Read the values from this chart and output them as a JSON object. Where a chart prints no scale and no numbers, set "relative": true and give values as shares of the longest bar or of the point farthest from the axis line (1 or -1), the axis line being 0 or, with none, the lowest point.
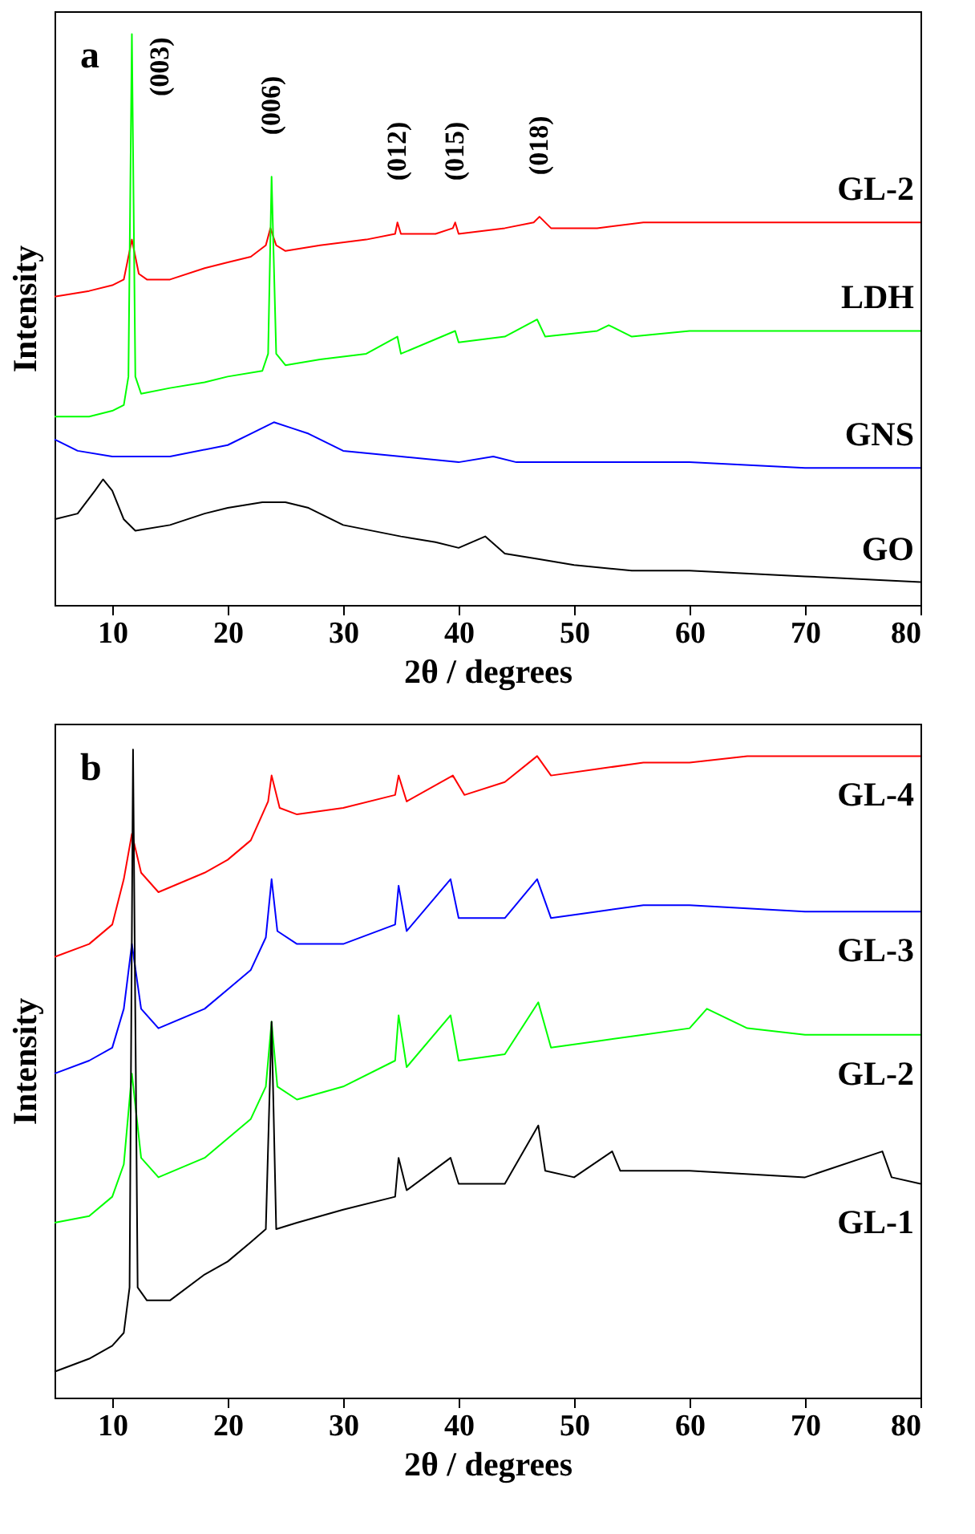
{
  "chart_data": [
    {
      "type": "line",
      "relative": true,
      "xlabel": "2θ / degrees",
      "ylabel": "Intensity",
      "xlim": [
        5,
        80
      ],
      "xticks": [
        10,
        20,
        30,
        40,
        50,
        60,
        70,
        80
      ],
      "annotations": [
        "a",
        {
          "text": "(003)",
          "x": 11.7,
          "y": 1.0
        },
        {
          "text": "(006)",
          "x": 23.8,
          "y": 0.75
        },
        {
          "text": "(012)",
          "x": 34.7,
          "y": 0.67
        },
        {
          "text": "(015)",
          "x": 39.7,
          "y": 0.67
        },
        {
          "text": "(018)",
          "x": 47,
          "y": 0.68
        }
      ],
      "series": [
        {
          "name": "GL-2",
          "color": "#ff0000",
          "x": [
            5,
            8,
            10,
            11,
            11.7,
            12.3,
            13,
            15,
            18,
            20,
            22,
            23.3,
            23.7,
            24.2,
            25,
            28,
            32,
            34.5,
            34.7,
            35,
            38,
            39.5,
            39.7,
            40,
            44,
            46.5,
            47,
            48,
            52,
            56,
            60,
            62,
            66,
            70,
            75,
            80
          ],
          "values": [
            0.54,
            0.55,
            0.56,
            0.57,
            0.64,
            0.58,
            0.57,
            0.57,
            0.59,
            0.6,
            0.61,
            0.63,
            0.66,
            0.63,
            0.62,
            0.63,
            0.64,
            0.65,
            0.67,
            0.65,
            0.65,
            0.66,
            0.67,
            0.65,
            0.66,
            0.67,
            0.68,
            0.66,
            0.66,
            0.67,
            0.67,
            0.67,
            0.67,
            0.67,
            0.67,
            0.67
          ]
        },
        {
          "name": "LDH",
          "color": "#00ff00",
          "x": [
            5,
            8,
            10,
            11,
            11.4,
            11.7,
            12,
            12.5,
            15,
            18,
            20,
            23,
            23.5,
            23.8,
            24.2,
            25,
            28,
            32,
            34.7,
            35,
            39.7,
            40,
            44,
            46.8,
            47.5,
            52,
            53,
            55,
            60,
            70,
            80
          ],
          "values": [
            0.33,
            0.33,
            0.34,
            0.35,
            0.4,
            1.0,
            0.4,
            0.37,
            0.38,
            0.39,
            0.4,
            0.41,
            0.44,
            0.75,
            0.44,
            0.42,
            0.43,
            0.44,
            0.47,
            0.44,
            0.48,
            0.46,
            0.47,
            0.5,
            0.47,
            0.48,
            0.49,
            0.47,
            0.48,
            0.48,
            0.48
          ]
        },
        {
          "name": "GNS",
          "color": "#0000ff",
          "x": [
            5,
            7,
            10,
            15,
            20,
            22,
            24,
            25.5,
            27,
            30,
            35,
            40,
            43,
            45,
            50,
            60,
            70,
            80
          ],
          "values": [
            0.29,
            0.27,
            0.26,
            0.26,
            0.28,
            0.3,
            0.32,
            0.31,
            0.3,
            0.27,
            0.26,
            0.25,
            0.26,
            0.25,
            0.25,
            0.25,
            0.24,
            0.24
          ]
        },
        {
          "name": "GO",
          "color": "#000000",
          "x": [
            5,
            7,
            8.5,
            9.2,
            10,
            11,
            12,
            15,
            18,
            20,
            23,
            25,
            27,
            30,
            35,
            38,
            40,
            42.3,
            44,
            47,
            50,
            55,
            60,
            70,
            80
          ],
          "values": [
            0.15,
            0.16,
            0.2,
            0.22,
            0.2,
            0.15,
            0.13,
            0.14,
            0.16,
            0.17,
            0.18,
            0.18,
            0.17,
            0.14,
            0.12,
            0.11,
            0.1,
            0.12,
            0.09,
            0.08,
            0.07,
            0.06,
            0.06,
            0.05,
            0.04
          ]
        }
      ]
    },
    {
      "type": "line",
      "relative": true,
      "xlabel": "2θ / degrees",
      "ylabel": "Intensity",
      "xlim": [
        5,
        80
      ],
      "xticks": [
        10,
        20,
        30,
        40,
        50,
        60,
        70,
        80
      ],
      "annotations": [
        "b"
      ],
      "series": [
        {
          "name": "GL-4",
          "color": "#ff0000",
          "x": [
            5,
            8,
            10,
            11,
            11.7,
            12.5,
            14,
            18,
            20,
            22,
            23.5,
            23.8,
            24.5,
            26,
            30,
            34.5,
            34.8,
            35.5,
            39.5,
            40.5,
            44,
            46.8,
            48,
            52,
            56,
            60,
            65,
            70,
            75,
            80
          ],
          "values": [
            0.68,
            0.7,
            0.73,
            0.8,
            0.87,
            0.81,
            0.78,
            0.81,
            0.83,
            0.86,
            0.92,
            0.96,
            0.91,
            0.9,
            0.91,
            0.93,
            0.96,
            0.92,
            0.96,
            0.93,
            0.95,
            0.99,
            0.96,
            0.97,
            0.98,
            0.98,
            0.99,
            0.99,
            0.99,
            0.99
          ]
        },
        {
          "name": "GL-3",
          "color": "#0000ff",
          "x": [
            5,
            8,
            10,
            11,
            11.7,
            12.5,
            14,
            18,
            20,
            22,
            23.3,
            23.8,
            24.3,
            26,
            30,
            34.5,
            34.8,
            35.5,
            39.3,
            40,
            44,
            46.8,
            48,
            52,
            56,
            60,
            70,
            80
          ],
          "values": [
            0.5,
            0.52,
            0.54,
            0.6,
            0.7,
            0.6,
            0.57,
            0.6,
            0.63,
            0.66,
            0.71,
            0.8,
            0.72,
            0.7,
            0.7,
            0.73,
            0.79,
            0.72,
            0.8,
            0.74,
            0.74,
            0.8,
            0.74,
            0.75,
            0.76,
            0.76,
            0.75,
            0.75
          ]
        },
        {
          "name": "GL-2",
          "color": "#00ff00",
          "x": [
            5,
            8,
            10,
            11,
            11.7,
            12.5,
            14,
            18,
            20,
            22,
            23.3,
            23.8,
            24.3,
            26,
            30,
            34.5,
            34.8,
            35.5,
            39.3,
            40,
            44,
            46.9,
            48,
            52,
            56,
            60,
            61.5,
            65,
            70,
            80
          ],
          "values": [
            0.27,
            0.28,
            0.31,
            0.36,
            0.5,
            0.37,
            0.34,
            0.37,
            0.4,
            0.43,
            0.48,
            0.58,
            0.48,
            0.46,
            0.48,
            0.52,
            0.59,
            0.51,
            0.59,
            0.52,
            0.53,
            0.61,
            0.54,
            0.55,
            0.56,
            0.57,
            0.6,
            0.57,
            0.56,
            0.56
          ]
        },
        {
          "name": "GL-1",
          "color": "#000000",
          "x": [
            5,
            8,
            10,
            11,
            11.5,
            11.8,
            12.2,
            13,
            15,
            18,
            20,
            22,
            23.3,
            23.8,
            24.2,
            26,
            30,
            34.5,
            34.8,
            35.5,
            39.3,
            40,
            44,
            46.9,
            47.5,
            50,
            53.3,
            54,
            60,
            70,
            76.7,
            77.5,
            80
          ],
          "values": [
            0.04,
            0.06,
            0.08,
            0.1,
            0.17,
            1.0,
            0.17,
            0.15,
            0.15,
            0.19,
            0.21,
            0.24,
            0.26,
            0.58,
            0.26,
            0.27,
            0.29,
            0.31,
            0.37,
            0.32,
            0.37,
            0.33,
            0.33,
            0.42,
            0.35,
            0.34,
            0.38,
            0.35,
            0.35,
            0.34,
            0.38,
            0.34,
            0.33
          ]
        }
      ]
    }
  ]
}
